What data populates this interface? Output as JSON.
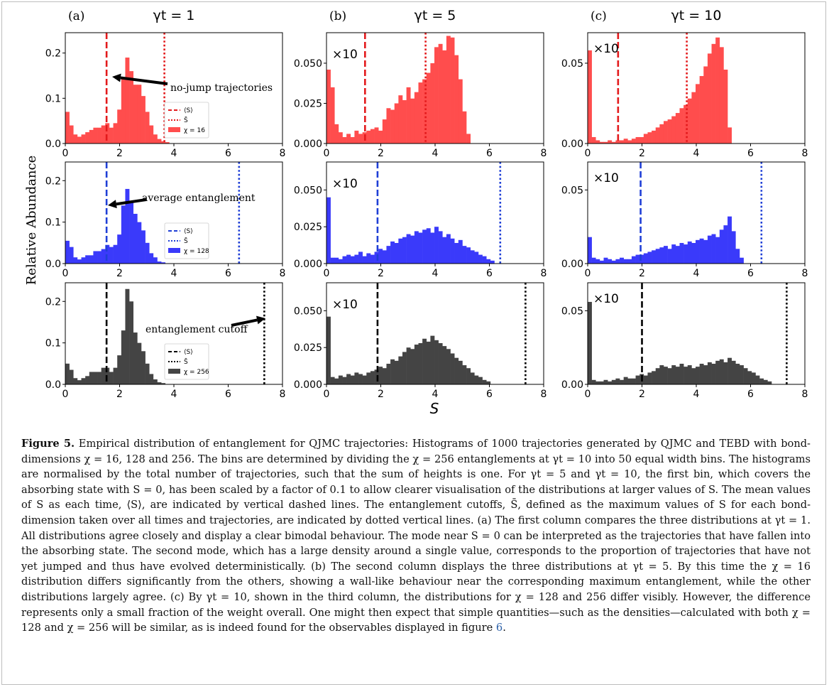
{
  "figure": {
    "ylabel": "Relative Abundance",
    "xlabel": "S",
    "columns": [
      {
        "tag": "(a)",
        "title": "γt = 1"
      },
      {
        "tag": "(b)",
        "title": "γt = 5"
      },
      {
        "tag": "(c)",
        "title": "γt = 10"
      }
    ],
    "legend": {
      "mean": "⟨S⟩",
      "cutoff": "S̄"
    },
    "annotations": {
      "no_jump": "no-jump trajectories",
      "average": "average entanglement",
      "cutoff": "entanglement cutoff",
      "scale": "×10"
    }
  },
  "chart_data": [
    {
      "type": "bar",
      "panel": "a1",
      "color": "#ff4d4d",
      "line_color": "#e31a1c",
      "series": "χ = 16",
      "xlim": [
        0,
        8
      ],
      "ylim": [
        0,
        0.245
      ],
      "yticks": [
        "0.0",
        "0.1",
        "0.2"
      ],
      "ytick_values": [
        0,
        0.1,
        0.2
      ],
      "xticks": [
        "0",
        "2",
        "4",
        "6",
        "8"
      ],
      "mean": 1.52,
      "cutoff": 3.65,
      "values": [
        0.07,
        0.04,
        0.02,
        0.015,
        0.02,
        0.025,
        0.03,
        0.035,
        0.035,
        0.04,
        0.045,
        0.035,
        0.045,
        0.075,
        0.145,
        0.19,
        0.16,
        0.13,
        0.13,
        0.105,
        0.07,
        0.04,
        0.02,
        0.01,
        0.005,
        0.003
      ]
    },
    {
      "type": "bar",
      "panel": "b1",
      "color": "#ff4d4d",
      "line_color": "#e31a1c",
      "series": "χ = 16",
      "xlim": [
        0,
        8
      ],
      "ylim": [
        0,
        0.069
      ],
      "yticks": [
        "0.000",
        "0.025",
        "0.050"
      ],
      "ytick_values": [
        0,
        0.025,
        0.05
      ],
      "xticks": [
        "0",
        "2",
        "4",
        "6",
        "8"
      ],
      "mean": 1.42,
      "cutoff": 3.65,
      "values": [
        0.046,
        0.035,
        0.012,
        0.007,
        0.004,
        0.006,
        0.004,
        0.008,
        0.006,
        0.007,
        0.008,
        0.009,
        0.01,
        0.008,
        0.015,
        0.022,
        0.021,
        0.025,
        0.03,
        0.027,
        0.035,
        0.028,
        0.032,
        0.038,
        0.04,
        0.044,
        0.05,
        0.06,
        0.062,
        0.058,
        0.067,
        0.066,
        0.055,
        0.04,
        0.02,
        0.006
      ]
    },
    {
      "type": "bar",
      "panel": "c1",
      "color": "#ff4d4d",
      "line_color": "#e31a1c",
      "series": "χ = 16",
      "xlim": [
        0,
        8
      ],
      "ylim": [
        0,
        0.069
      ],
      "yticks": [
        "0.00",
        "0.05"
      ],
      "ytick_values": [
        0,
        0.05
      ],
      "xticks": [
        "0",
        "2",
        "4",
        "6",
        "8"
      ],
      "mean": 1.12,
      "cutoff": 3.65,
      "values": [
        0.058,
        0.004,
        0.002,
        0.001,
        0.001,
        0.002,
        0.001,
        0.002,
        0.002,
        0.003,
        0.002,
        0.003,
        0.004,
        0.004,
        0.006,
        0.007,
        0.008,
        0.01,
        0.012,
        0.014,
        0.015,
        0.017,
        0.019,
        0.022,
        0.024,
        0.028,
        0.032,
        0.037,
        0.042,
        0.048,
        0.056,
        0.062,
        0.066,
        0.06,
        0.046,
        0.01
      ]
    },
    {
      "type": "bar",
      "panel": "a2",
      "color": "#3a3afa",
      "line_color": "#1f3fd6",
      "series": "χ = 128",
      "xlim": [
        0,
        8
      ],
      "ylim": [
        0,
        0.245
      ],
      "yticks": [
        "0.0",
        "0.1",
        "0.2"
      ],
      "ytick_values": [
        0,
        0.1,
        0.2
      ],
      "xticks": [
        "0",
        "2",
        "4",
        "6",
        "8"
      ],
      "mean": 1.52,
      "cutoff": 6.4,
      "values": [
        0.055,
        0.04,
        0.015,
        0.01,
        0.015,
        0.02,
        0.02,
        0.03,
        0.03,
        0.035,
        0.045,
        0.04,
        0.045,
        0.07,
        0.14,
        0.18,
        0.15,
        0.12,
        0.1,
        0.08,
        0.05,
        0.025,
        0.015,
        0.005,
        0.003
      ]
    },
    {
      "type": "bar",
      "panel": "b2",
      "color": "#3a3afa",
      "line_color": "#1f3fd6",
      "series": "χ = 128",
      "xlim": [
        0,
        8
      ],
      "ylim": [
        0,
        0.069
      ],
      "yticks": [
        "0.000",
        "0.025",
        "0.050"
      ],
      "ytick_values": [
        0,
        0.025,
        0.05
      ],
      "xticks": [
        "0",
        "2",
        "4",
        "6",
        "8"
      ],
      "mean": 1.88,
      "cutoff": 6.4,
      "values": [
        0.045,
        0.004,
        0.004,
        0.003,
        0.005,
        0.006,
        0.005,
        0.006,
        0.008,
        0.005,
        0.007,
        0.006,
        0.008,
        0.01,
        0.009,
        0.012,
        0.015,
        0.014,
        0.017,
        0.018,
        0.02,
        0.019,
        0.022,
        0.021,
        0.023,
        0.024,
        0.021,
        0.025,
        0.022,
        0.018,
        0.02,
        0.017,
        0.014,
        0.016,
        0.012,
        0.011,
        0.009,
        0.008,
        0.006,
        0.005,
        0.003,
        0.002
      ]
    },
    {
      "type": "bar",
      "panel": "c2",
      "color": "#3a3afa",
      "line_color": "#1f3fd6",
      "series": "χ = 128",
      "xlim": [
        0,
        8
      ],
      "ylim": [
        0,
        0.069
      ],
      "yticks": [
        "0.00",
        "0.05"
      ],
      "ytick_values": [
        0,
        0.05
      ],
      "xticks": [
        "0",
        "2",
        "4",
        "6",
        "8"
      ],
      "mean": 1.95,
      "cutoff": 6.4,
      "values": [
        0.018,
        0.004,
        0.003,
        0.002,
        0.004,
        0.003,
        0.002,
        0.003,
        0.004,
        0.003,
        0.003,
        0.005,
        0.006,
        0.006,
        0.007,
        0.008,
        0.009,
        0.01,
        0.011,
        0.012,
        0.01,
        0.013,
        0.012,
        0.014,
        0.013,
        0.015,
        0.014,
        0.016,
        0.017,
        0.016,
        0.019,
        0.02,
        0.018,
        0.023,
        0.026,
        0.032,
        0.022,
        0.01,
        0.004
      ]
    },
    {
      "type": "bar",
      "panel": "a3",
      "color": "#444444",
      "line_color": "#000000",
      "series": "χ = 256",
      "xlim": [
        0,
        8
      ],
      "ylim": [
        0,
        0.245
      ],
      "yticks": [
        "0.0",
        "0.1",
        "0.2"
      ],
      "ytick_values": [
        0,
        0.1,
        0.2
      ],
      "xticks": [
        "0",
        "2",
        "4",
        "6",
        "8"
      ],
      "mean": 1.52,
      "cutoff": 7.33,
      "values": [
        0.05,
        0.035,
        0.015,
        0.01,
        0.015,
        0.02,
        0.03,
        0.03,
        0.03,
        0.04,
        0.04,
        0.03,
        0.04,
        0.07,
        0.13,
        0.23,
        0.2,
        0.125,
        0.1,
        0.08,
        0.05,
        0.025,
        0.012,
        0.005,
        0.003
      ]
    },
    {
      "type": "bar",
      "panel": "b3",
      "color": "#444444",
      "line_color": "#000000",
      "series": "χ = 256",
      "xlim": [
        0,
        8
      ],
      "ylim": [
        0,
        0.069
      ],
      "yticks": [
        "0.000",
        "0.025",
        "0.050"
      ],
      "ytick_values": [
        0,
        0.025,
        0.05
      ],
      "xticks": [
        "0",
        "2",
        "4",
        "6",
        "8"
      ],
      "mean": 1.88,
      "cutoff": 7.33,
      "values": [
        0.046,
        0.005,
        0.004,
        0.006,
        0.005,
        0.007,
        0.006,
        0.008,
        0.007,
        0.006,
        0.008,
        0.009,
        0.01,
        0.012,
        0.011,
        0.014,
        0.017,
        0.016,
        0.019,
        0.022,
        0.025,
        0.024,
        0.027,
        0.028,
        0.031,
        0.029,
        0.033,
        0.03,
        0.028,
        0.026,
        0.024,
        0.021,
        0.018,
        0.016,
        0.013,
        0.011,
        0.008,
        0.006,
        0.005,
        0.003,
        0.002
      ]
    },
    {
      "type": "bar",
      "panel": "c3",
      "color": "#444444",
      "line_color": "#000000",
      "series": "χ = 256",
      "xlim": [
        0,
        8
      ],
      "ylim": [
        0,
        0.069
      ],
      "yticks": [
        "0.00",
        "0.05"
      ],
      "ytick_values": [
        0,
        0.05
      ],
      "xticks": [
        "0",
        "2",
        "4",
        "6",
        "8"
      ],
      "mean": 2.0,
      "cutoff": 7.33,
      "values": [
        0.056,
        0.003,
        0.002,
        0.002,
        0.003,
        0.002,
        0.003,
        0.004,
        0.003,
        0.005,
        0.004,
        0.004,
        0.006,
        0.007,
        0.006,
        0.008,
        0.009,
        0.011,
        0.013,
        0.012,
        0.011,
        0.013,
        0.012,
        0.014,
        0.012,
        0.013,
        0.011,
        0.012,
        0.014,
        0.013,
        0.015,
        0.014,
        0.016,
        0.017,
        0.015,
        0.018,
        0.016,
        0.014,
        0.013,
        0.011,
        0.009,
        0.008,
        0.006,
        0.004,
        0.003,
        0.002
      ]
    }
  ],
  "caption": {
    "label": "Figure 5.",
    "text": " Empirical distribution of entanglement for QJMC trajectories: Histograms of 1000 trajectories generated by QJMC and TEBD with bond-dimensions χ = 16, 128 and 256. The bins are determined by dividing the χ = 256 entanglements at γt = 10 into 50 equal width bins. The histograms are normalised by the total number of trajectories, such that the sum of heights is one. For γt = 5 and γt = 10, the first bin, which covers the absorbing state with S = 0, has been scaled by a factor of 0.1 to allow clearer visualisation of the distributions at larger values of S. The mean values of S as each time, ⟨S⟩, are indicated by vertical dashed lines. The entanglement cutoffs, S̄, defined as the maximum values of S for each bond-dimension taken over all times and trajectories, are indicated by dotted vertical lines. (a) The first column compares the three distributions at γt = 1. All distributions agree closely and display a clear bimodal behaviour. The mode near S = 0 can be interpreted as the trajectories that have fallen into the absorbing state. The second mode, which has a large density around a single value, corresponds to the proportion of trajectories that have not yet jumped and thus have evolved deterministically. (b) The second column displays the three distributions at γt = 5. By this time the χ = 16 distribution differs significantly from the others, showing a wall-like behaviour near the corresponding maximum entanglement, while the other distributions largely agree. (c) By γt = 10, shown in the third column, the distributions for χ = 128 and 256 differ visibly. However, the difference represents only a small fraction of the weight overall. One might then expect that simple quantities—such as the densities—calculated with both χ = 128 and χ = 256 will be similar, as is indeed found for the observables displayed in figure ",
    "ref": "6",
    "end": "."
  }
}
